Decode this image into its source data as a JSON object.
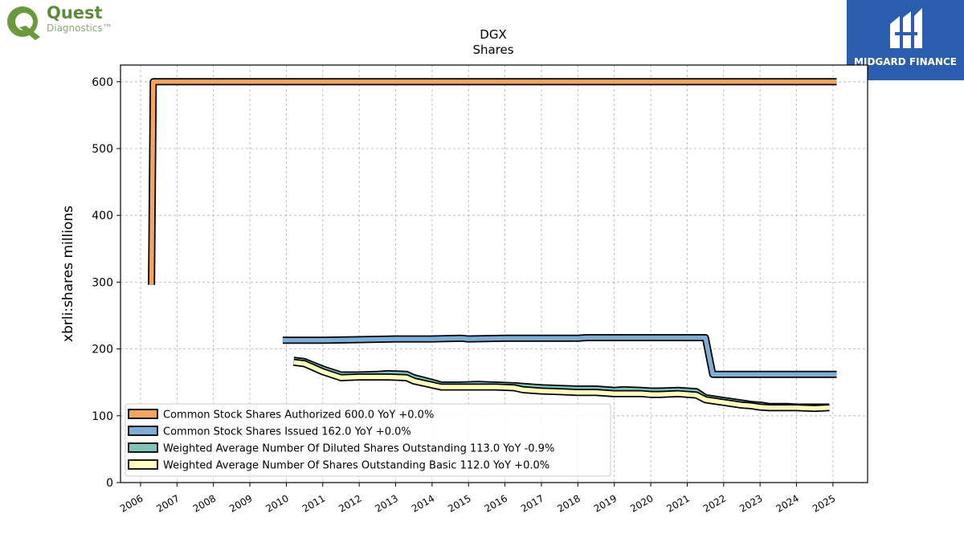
{
  "logos": {
    "left": {
      "name": "Quest",
      "tagline": "Diagnostics™"
    },
    "right": {
      "name": "MIDGARD FINANCE"
    }
  },
  "chart_data": {
    "type": "line",
    "title": "DGX",
    "subtitle": "Shares",
    "ylabel": "xbrli:shares millions",
    "xlabel": "",
    "xlim": [
      2005.45,
      2025.95
    ],
    "ylim": [
      0,
      625
    ],
    "x_ticks": [
      "2006",
      "2007",
      "2008",
      "2009",
      "2010",
      "2011",
      "2012",
      "2013",
      "2014",
      "2015",
      "2016",
      "2017",
      "2018",
      "2019",
      "2020",
      "2021",
      "2022",
      "2023",
      "2024",
      "2025"
    ],
    "y_ticks": [
      0,
      100,
      200,
      300,
      400,
      500,
      600
    ],
    "grid": true,
    "legend_position": "lower-left",
    "series": [
      {
        "name": "Common Stock Shares Authorized",
        "legend_label": "Common Stock Shares Authorized  600.0 YoY +0.0%",
        "color": "#f4a460",
        "x": [
          2006.3,
          2006.35,
          2006.5,
          2007,
          2008,
          2009,
          2010,
          2011,
          2012,
          2013,
          2014,
          2015,
          2016,
          2017,
          2018,
          2019,
          2020,
          2021,
          2022,
          2023,
          2024,
          2025.1
        ],
        "y": [
          296,
          600,
          600,
          600,
          600,
          600,
          600,
          600,
          600,
          600,
          600,
          600,
          600,
          600,
          600,
          600,
          600,
          600,
          600,
          600,
          600,
          600
        ]
      },
      {
        "name": "Common Stock Shares Issued",
        "legend_label": "Common Stock Shares Issued  162.0 YoY +0.0%",
        "color": "#7eaed6",
        "x": [
          2009.9,
          2011,
          2012,
          2013,
          2014,
          2014.8,
          2015,
          2016,
          2017,
          2018,
          2018.25,
          2019,
          2020,
          2021,
          2021.5,
          2021.7,
          2022,
          2023,
          2024,
          2025.1
        ],
        "y": [
          213,
          213,
          214,
          215,
          215,
          216,
          215,
          216,
          216,
          216,
          217,
          217,
          217,
          217,
          217,
          162,
          162,
          162,
          162,
          162
        ]
      },
      {
        "name": "Weighted Average Number Of Diluted Shares Outstanding",
        "legend_label": "Weighted Average Number Of Diluted Shares Outstanding  113.0 YoY -0.9%",
        "color": "#7fc4b8",
        "x": [
          2010.2,
          2010.5,
          2011,
          2011.5,
          2012,
          2012.5,
          2012.8,
          2013.3,
          2013.5,
          2014,
          2014.25,
          2014.75,
          2015.25,
          2015.75,
          2016.25,
          2016.5,
          2017,
          2017.5,
          2018,
          2018.5,
          2019,
          2019.25,
          2019.75,
          2020,
          2020.25,
          2020.75,
          2021.25,
          2021.5,
          2021.75,
          2022,
          2022.5,
          2022.75,
          2023,
          2023.25,
          2023.75,
          2024,
          2024.5,
          2024.9
        ],
        "y": [
          183,
          181,
          170,
          161,
          161,
          162,
          163,
          162,
          157,
          150,
          146,
          146,
          147,
          146,
          145,
          144,
          142,
          141,
          140,
          140,
          138,
          139,
          138,
          137,
          137,
          138,
          136,
          127,
          125,
          123,
          119,
          117,
          116,
          114,
          114,
          113,
          113,
          113
        ]
      },
      {
        "name": "Weighted Average Number Of Shares Outstanding Basic",
        "legend_label": "Weighted Average Number Of Shares Outstanding Basic  112.0 YoY +0.0%",
        "color": "#ffffc0",
        "x": [
          2010.2,
          2010.5,
          2011,
          2011.5,
          2012,
          2012.5,
          2012.8,
          2013.3,
          2013.5,
          2014,
          2014.25,
          2014.75,
          2015.25,
          2015.75,
          2016.25,
          2016.5,
          2017,
          2017.5,
          2018,
          2018.5,
          2019,
          2019.25,
          2019.75,
          2020,
          2020.25,
          2020.75,
          2021.25,
          2021.5,
          2021.75,
          2022,
          2022.5,
          2022.75,
          2023,
          2023.25,
          2023.75,
          2024,
          2024.5,
          2024.9
        ],
        "y": [
          180,
          178,
          166,
          157,
          158,
          158,
          158,
          157,
          152,
          146,
          143,
          143,
          143,
          143,
          142,
          139,
          137,
          136,
          135,
          135,
          133,
          133,
          133,
          132,
          132,
          133,
          131,
          124,
          122,
          120,
          116,
          115,
          113,
          112,
          112,
          112,
          111,
          112
        ]
      }
    ]
  }
}
